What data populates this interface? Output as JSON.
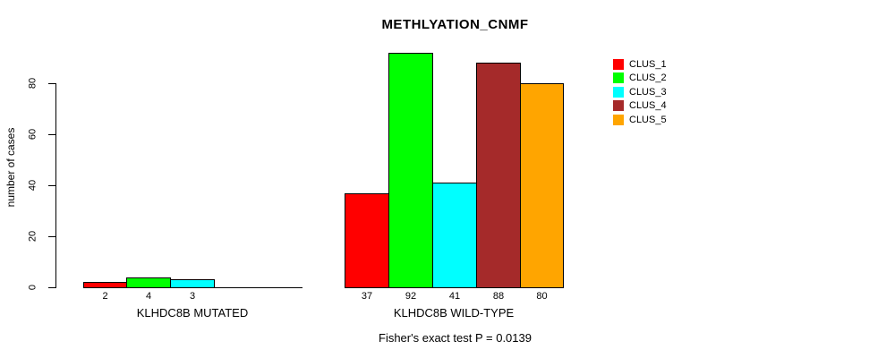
{
  "chart_data": {
    "type": "bar",
    "title": "METHLYATION_CNMF",
    "ylabel": "number of cases",
    "xlabel": "",
    "footnote": "Fisher's exact test P = 0.0139",
    "ylim": [
      0,
      92
    ],
    "yticks": [
      0,
      20,
      40,
      60,
      80
    ],
    "grid": false,
    "legend_position": "right",
    "bar_value_labels_shown": true,
    "categories": [
      "KLHDC8B MUTATED",
      "KLHDC8B WILD-TYPE"
    ],
    "series": [
      {
        "name": "CLUS_1",
        "color": "#FF0000",
        "values": [
          2,
          37
        ]
      },
      {
        "name": "CLUS_2",
        "color": "#00FF00",
        "values": [
          4,
          92
        ]
      },
      {
        "name": "CLUS_3",
        "color": "#00FFFF",
        "values": [
          3,
          41
        ]
      },
      {
        "name": "CLUS_4",
        "color": "#A52A2A",
        "values": [
          0,
          88
        ]
      },
      {
        "name": "CLUS_5",
        "color": "#FFA500",
        "values": [
          0,
          80
        ]
      }
    ],
    "legend_entries": [
      "CLUS_1",
      "CLUS_2",
      "CLUS_3",
      "CLUS_4",
      "CLUS_5"
    ]
  }
}
